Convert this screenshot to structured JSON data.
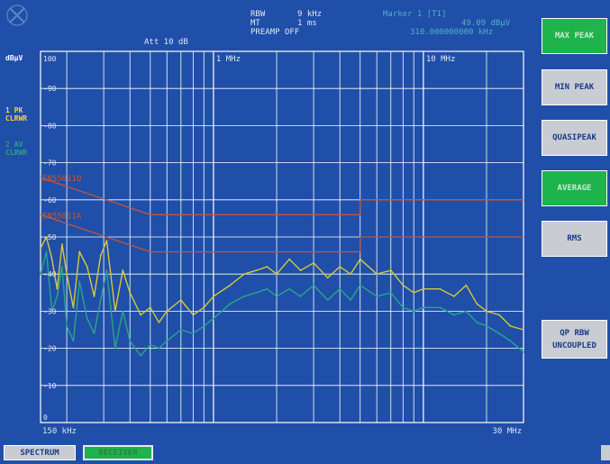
{
  "header": {
    "att": "Att 10 dB",
    "rbw_label": "RBW",
    "rbw_value": "9 kHz",
    "mt_label": "MT",
    "mt_value": "1 ms",
    "preamp": "PREAMP OFF",
    "marker_title": "Marker 1 [T1]",
    "marker_level": "49.09 dBµV",
    "marker_freq": "310.000000000 kHz"
  },
  "axis_unit": "dBµV",
  "trace1_label": "1 PK\nCLRWR",
  "trace2_label": "2 AV\nCLRWR",
  "softkeys": [
    {
      "label": "MAX PEAK",
      "active": true
    },
    {
      "label": "MIN PEAK",
      "active": false
    },
    {
      "label": "QUASIPEAK",
      "active": false
    },
    {
      "label": "AVERAGE",
      "active": true
    },
    {
      "label": "RMS",
      "active": false
    },
    {
      "label": "QP RBW\nUNCOUPLED",
      "active": false
    }
  ],
  "tabs": {
    "spectrum": "SPECTRUM",
    "receiver": "RECEIVER"
  },
  "colors": {
    "background": "#1f4fa8",
    "grid": "#ffffff",
    "trace_peak": "#d8c83a",
    "trace_average": "#2ba58a",
    "limit_lines": "#c4553a",
    "softkey_active": "#1eb34b",
    "softkey_inactive": "#c9ccd2"
  },
  "chart_data": {
    "type": "line",
    "x_scale": "log",
    "xlim_hz": [
      150000,
      30000000
    ],
    "ylim": [
      0,
      100
    ],
    "y_ticks": [
      100,
      90,
      80,
      70,
      60,
      50,
      40,
      30,
      20,
      10,
      0
    ],
    "x_start_label": "150 kHz",
    "x_stop_label": "30 MHz",
    "x_markers": [
      {
        "label": "1 MHz",
        "x": 1000000
      },
      {
        "label": "10 MHz",
        "x": 10000000
      }
    ],
    "limit_lines": [
      {
        "name": "EN55011Q",
        "points": [
          [
            150000,
            66
          ],
          [
            500000,
            56
          ],
          [
            5000000,
            56
          ],
          [
            5000000,
            60
          ],
          [
            30000000,
            60
          ]
        ]
      },
      {
        "name": "EN55011A",
        "points": [
          [
            150000,
            56
          ],
          [
            500000,
            46
          ],
          [
            5000000,
            46
          ],
          [
            5000000,
            50
          ],
          [
            30000000,
            50
          ]
        ]
      }
    ],
    "series": [
      {
        "key": "peak",
        "x": [
          150000,
          160000,
          170000,
          180000,
          190000,
          200000,
          215000,
          230000,
          250000,
          270000,
          290000,
          310000,
          340000,
          370000,
          400000,
          450000,
          500000,
          550000,
          600000,
          700000,
          800000,
          900000,
          1000000,
          1200000,
          1400000,
          1600000,
          1800000,
          2000000,
          2300000,
          2600000,
          3000000,
          3500000,
          4000000,
          4500000,
          5000000,
          6000000,
          7000000,
          8000000,
          9000000,
          10000000,
          12000000,
          14000000,
          16000000,
          18000000,
          20000000,
          23000000,
          26000000,
          30000000
        ],
        "values": [
          47,
          50,
          44,
          36,
          48,
          40,
          31,
          46,
          42,
          34,
          45,
          49,
          30,
          41,
          35,
          29,
          31,
          27,
          30,
          33,
          29,
          31,
          34,
          37,
          40,
          41,
          42,
          40,
          44,
          41,
          43,
          39,
          42,
          40,
          44,
          40,
          41,
          37,
          35,
          36,
          36,
          34,
          37,
          32,
          30,
          29,
          26,
          25
        ]
      },
      {
        "key": "average",
        "x": [
          150000,
          160000,
          170000,
          180000,
          190000,
          200000,
          215000,
          230000,
          250000,
          270000,
          290000,
          310000,
          340000,
          370000,
          400000,
          450000,
          500000,
          550000,
          600000,
          700000,
          800000,
          900000,
          1000000,
          1200000,
          1400000,
          1600000,
          1800000,
          2000000,
          2300000,
          2600000,
          3000000,
          3500000,
          4000000,
          4500000,
          5000000,
          6000000,
          7000000,
          8000000,
          9000000,
          10000000,
          12000000,
          14000000,
          16000000,
          18000000,
          20000000,
          23000000,
          26000000,
          30000000
        ],
        "values": [
          40,
          46,
          30,
          34,
          42,
          26,
          22,
          38,
          28,
          24,
          33,
          41,
          20,
          30,
          22,
          18,
          21,
          20,
          22,
          25,
          24,
          26,
          28,
          32,
          34,
          35,
          36,
          34,
          36,
          34,
          37,
          33,
          36,
          33,
          37,
          34,
          35,
          31,
          30,
          31,
          31,
          29,
          30,
          27,
          26,
          24,
          22,
          19
        ]
      }
    ]
  }
}
